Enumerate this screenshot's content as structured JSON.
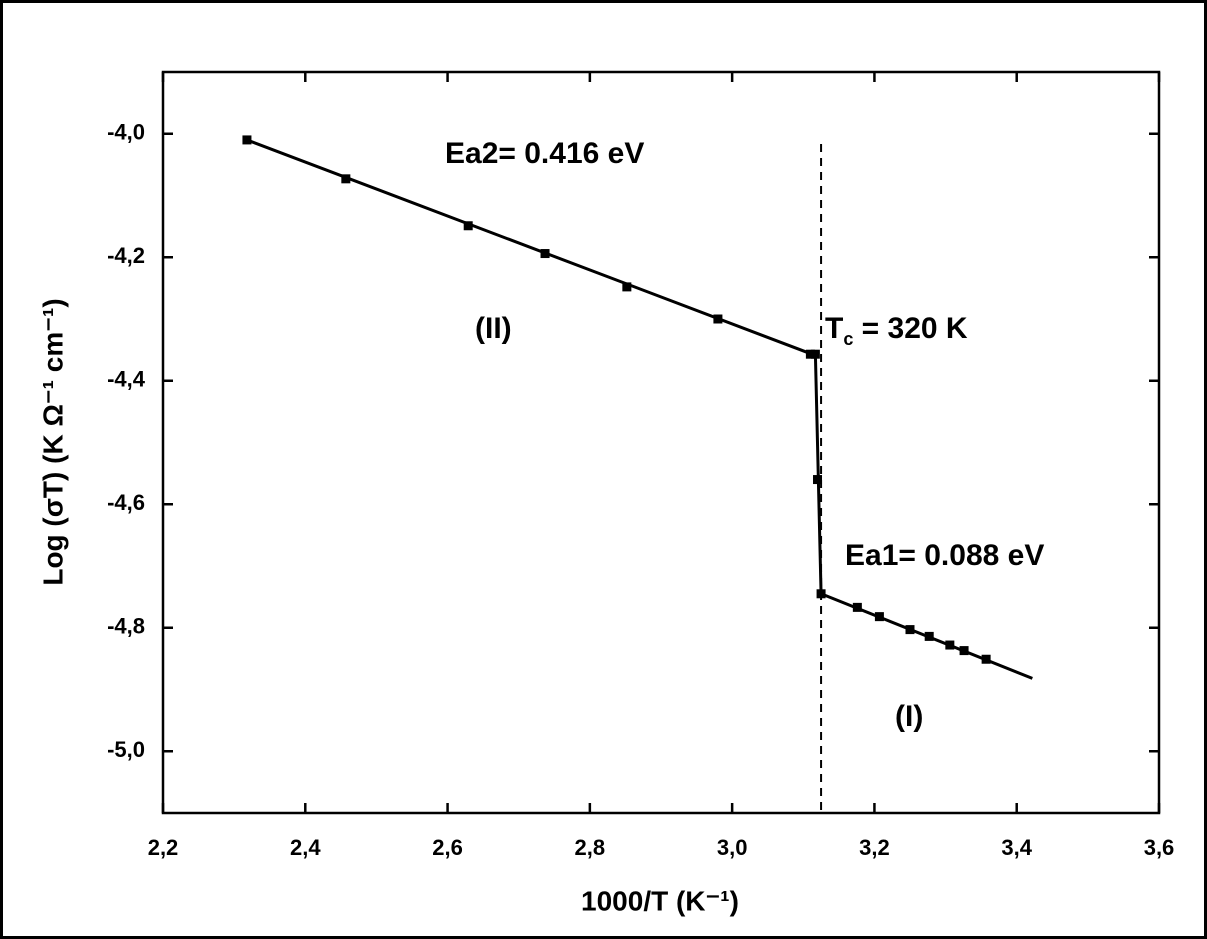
{
  "chart_data": {
    "type": "scatter",
    "x_label": "1000/T (K⁻¹)",
    "y_label": "Log (σT) (K Ω⁻¹ cm⁻¹)",
    "series": [
      {
        "color": "#000000",
        "x": [
          2.318,
          2.457,
          2.629,
          2.737,
          2.852,
          2.98,
          3.11,
          3.117,
          3.12,
          3.125,
          3.176,
          3.207,
          3.25,
          3.277,
          3.306,
          3.326,
          3.357
        ],
        "values": [
          -4.01,
          -4.073,
          -4.149,
          -4.194,
          -4.248,
          -4.3,
          -4.357,
          -4.357,
          -4.56,
          -4.745,
          -4.767,
          -4.782,
          -4.803,
          -4.814,
          -4.828,
          -4.837,
          -4.851
        ]
      }
    ],
    "fit_line": {
      "color": "#000000",
      "x": [
        2.318,
        3.11,
        3.117,
        3.125,
        3.422
      ],
      "values": [
        -4.01,
        -4.356,
        -4.356,
        -4.745,
        -4.882
      ]
    },
    "vline": 3.125,
    "xlim": [
      2.2,
      3.6
    ],
    "xticks": [
      {
        "value": 2.2,
        "label": "2,2"
      },
      {
        "value": 2.4,
        "label": "2,4"
      },
      {
        "value": 2.6,
        "label": "2,6"
      },
      {
        "value": 2.8,
        "label": "2,8"
      },
      {
        "value": 3.0,
        "label": "3,0"
      },
      {
        "value": 3.2,
        "label": "3,2"
      },
      {
        "value": 3.4,
        "label": "3,4"
      },
      {
        "value": 3.6,
        "label": "3,6"
      }
    ],
    "ylim": [
      -5.1,
      -3.9
    ],
    "yticks": [
      {
        "value": -5.0,
        "label": "-5,0"
      },
      {
        "value": -4.8,
        "label": "-4,8"
      },
      {
        "value": -4.6,
        "label": "-4,6"
      },
      {
        "value": -4.4,
        "label": "-4,4"
      },
      {
        "value": -4.2,
        "label": "-4,2"
      },
      {
        "value": -4.0,
        "label": "-4,0"
      }
    ],
    "annotations": [
      {
        "text": "Ea2= 0.416 eV"
      },
      {
        "text": "(II)"
      },
      {
        "base": "T",
        "sub": "c",
        "tail": " = 320 K"
      },
      {
        "text": "Ea1= 0.088 eV"
      },
      {
        "text": "(I)"
      }
    ]
  }
}
